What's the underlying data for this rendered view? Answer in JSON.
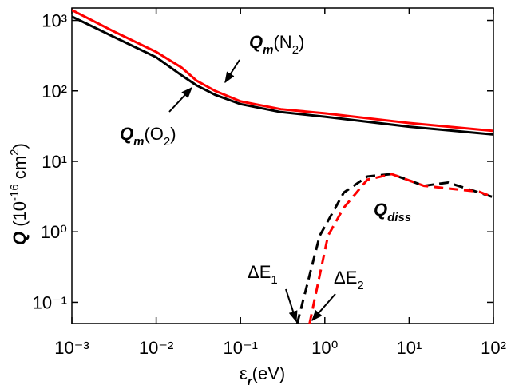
{
  "chart_data": {
    "type": "line",
    "x_label": [
      {
        "text": "ε"
      },
      {
        "text": "r",
        "sub": true,
        "em": true
      },
      {
        "text": "(eV)"
      }
    ],
    "y_label": [
      {
        "text": "Q",
        "em": true
      },
      {
        "text": " (10"
      },
      {
        "text": "-16",
        "sup": true
      },
      {
        "text": " cm"
      },
      {
        "text": "2",
        "sup": true
      },
      {
        "text": ")"
      }
    ],
    "x_log": true,
    "y_log": true,
    "grid": false,
    "xlim": [
      0.001,
      100
    ],
    "ylim": [
      0.05,
      1500
    ],
    "xticks": [
      {
        "value": 0.001,
        "label": "10⁻³"
      },
      {
        "value": 0.01,
        "label": "10⁻²"
      },
      {
        "value": 0.1,
        "label": "10⁻¹"
      },
      {
        "value": 1,
        "label": "10⁰"
      },
      {
        "value": 10,
        "label": "10¹"
      },
      {
        "value": 100,
        "label": "10²"
      }
    ],
    "yticks": [
      {
        "value": 0.1,
        "label": "10⁻¹"
      },
      {
        "value": 1,
        "label": "10⁰"
      },
      {
        "value": 10,
        "label": "10¹"
      },
      {
        "value": 100,
        "label": "10²"
      },
      {
        "value": 1000,
        "label": "10³"
      }
    ],
    "series": [
      {
        "color": "#ff0000",
        "dash": false,
        "x": [
          0.001,
          0.003,
          0.01,
          0.02,
          0.03,
          0.05,
          0.1,
          0.3,
          1,
          10,
          100
        ],
        "values": [
          1400,
          716,
          357,
          214,
          140,
          100,
          71,
          55,
          48,
          35,
          27
        ]
      },
      {
        "color": "#000000",
        "dash": false,
        "x": [
          0.001,
          0.003,
          0.01,
          0.02,
          0.03,
          0.05,
          0.1,
          0.3,
          1,
          10,
          100
        ],
        "values": [
          1135,
          600,
          300,
          166,
          120,
          88,
          65,
          50,
          43,
          31,
          24
        ]
      },
      {
        "color": "#000000",
        "dash": true,
        "x": [
          0.47,
          0.87,
          1.68,
          3.2,
          6.2,
          15,
          29,
          100
        ],
        "values": [
          0.05,
          0.88,
          3.6,
          6.1,
          6.6,
          4.5,
          5,
          3.1
        ]
      },
      {
        "color": "#ff0000",
        "dash": true,
        "x": [
          0.66,
          1.09,
          1.68,
          3.2,
          6.2,
          15,
          68,
          100
        ],
        "values": [
          0.05,
          0.88,
          2.2,
          5.5,
          6.6,
          4.5,
          3.7,
          3.1
        ]
      }
    ],
    "annotations": [
      [
        {
          "text": "Q",
          "em": true
        },
        {
          "text": "m",
          "sub": true,
          "em": true
        },
        {
          "text": "(N"
        },
        {
          "text": "2",
          "sub": true
        },
        {
          "text": ")"
        }
      ],
      [
        {
          "text": "Q",
          "em": true
        },
        {
          "text": "m",
          "sub": true,
          "em": true
        },
        {
          "text": "(O"
        },
        {
          "text": "2",
          "sub": true
        },
        {
          "text": ")"
        }
      ],
      [
        {
          "text": "Q",
          "em": true
        },
        {
          "text": "diss",
          "sub": true,
          "em": true
        }
      ],
      [
        {
          "text": "ΔE"
        },
        {
          "text": "1",
          "sub": true
        }
      ],
      [
        {
          "text": "ΔE"
        },
        {
          "text": "2",
          "sub": true
        }
      ]
    ]
  }
}
